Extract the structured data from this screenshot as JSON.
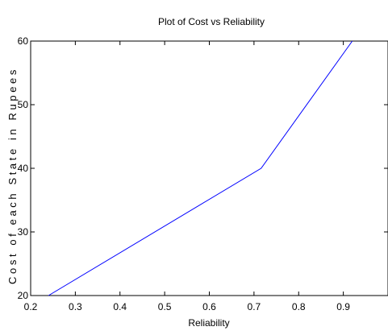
{
  "chart_data": {
    "type": "line",
    "title": "Plot of Cost vs Reliability",
    "xlabel": "Reliability",
    "ylabel": "Cost of each State in Rupees",
    "xlim": [
      0.2,
      1.0
    ],
    "ylim": [
      20,
      60
    ],
    "xticks": [
      0.2,
      0.3,
      0.4,
      0.5,
      0.6,
      0.7,
      0.8,
      0.9
    ],
    "yticks": [
      20,
      30,
      40,
      50,
      60
    ],
    "xtick_labels": [
      "0.2",
      "0.3",
      "0.4",
      "0.5",
      "0.6",
      "0.7",
      "0.8",
      "0.9"
    ],
    "ytick_labels": [
      "20",
      "30",
      "40",
      "50",
      "60"
    ],
    "grid": false,
    "series": [
      {
        "x": [
          0.24,
          0.716,
          0.92
        ],
        "y": [
          20,
          40,
          60
        ],
        "color": "#0000ff"
      }
    ]
  }
}
